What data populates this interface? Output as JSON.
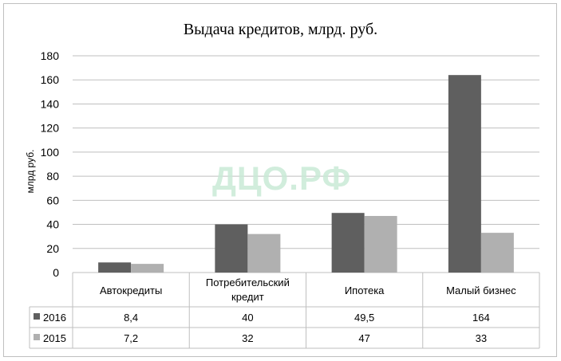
{
  "chart_data": {
    "type": "bar",
    "title": "Выдача кредитов, млрд. руб.",
    "ylabel": "млрд руб.",
    "xlabel": "",
    "ylim": [
      0,
      180
    ],
    "yticks": [
      0,
      20,
      40,
      60,
      80,
      100,
      120,
      140,
      160,
      180
    ],
    "categories": [
      "Автокредиты",
      "Потребительский кредит",
      "Ипотека",
      "Малый бизнес"
    ],
    "category_lines": [
      [
        "Автокредиты"
      ],
      [
        "Потребительский",
        "кредит"
      ],
      [
        "Ипотека"
      ],
      [
        "Малый бизнес"
      ]
    ],
    "series": [
      {
        "name": "2016",
        "values": [
          8.4,
          40,
          49.5,
          164
        ],
        "labels": [
          "8,4",
          "40",
          "49,5",
          "164"
        ],
        "color": "#5f5f5f"
      },
      {
        "name": "2015",
        "values": [
          7.2,
          32,
          47,
          33
        ],
        "labels": [
          "7,2",
          "32",
          "47",
          "33"
        ],
        "color": "#b0b0b0"
      }
    ],
    "grid": true,
    "legend": "data-table",
    "watermark": "ДЦО.РФ"
  }
}
